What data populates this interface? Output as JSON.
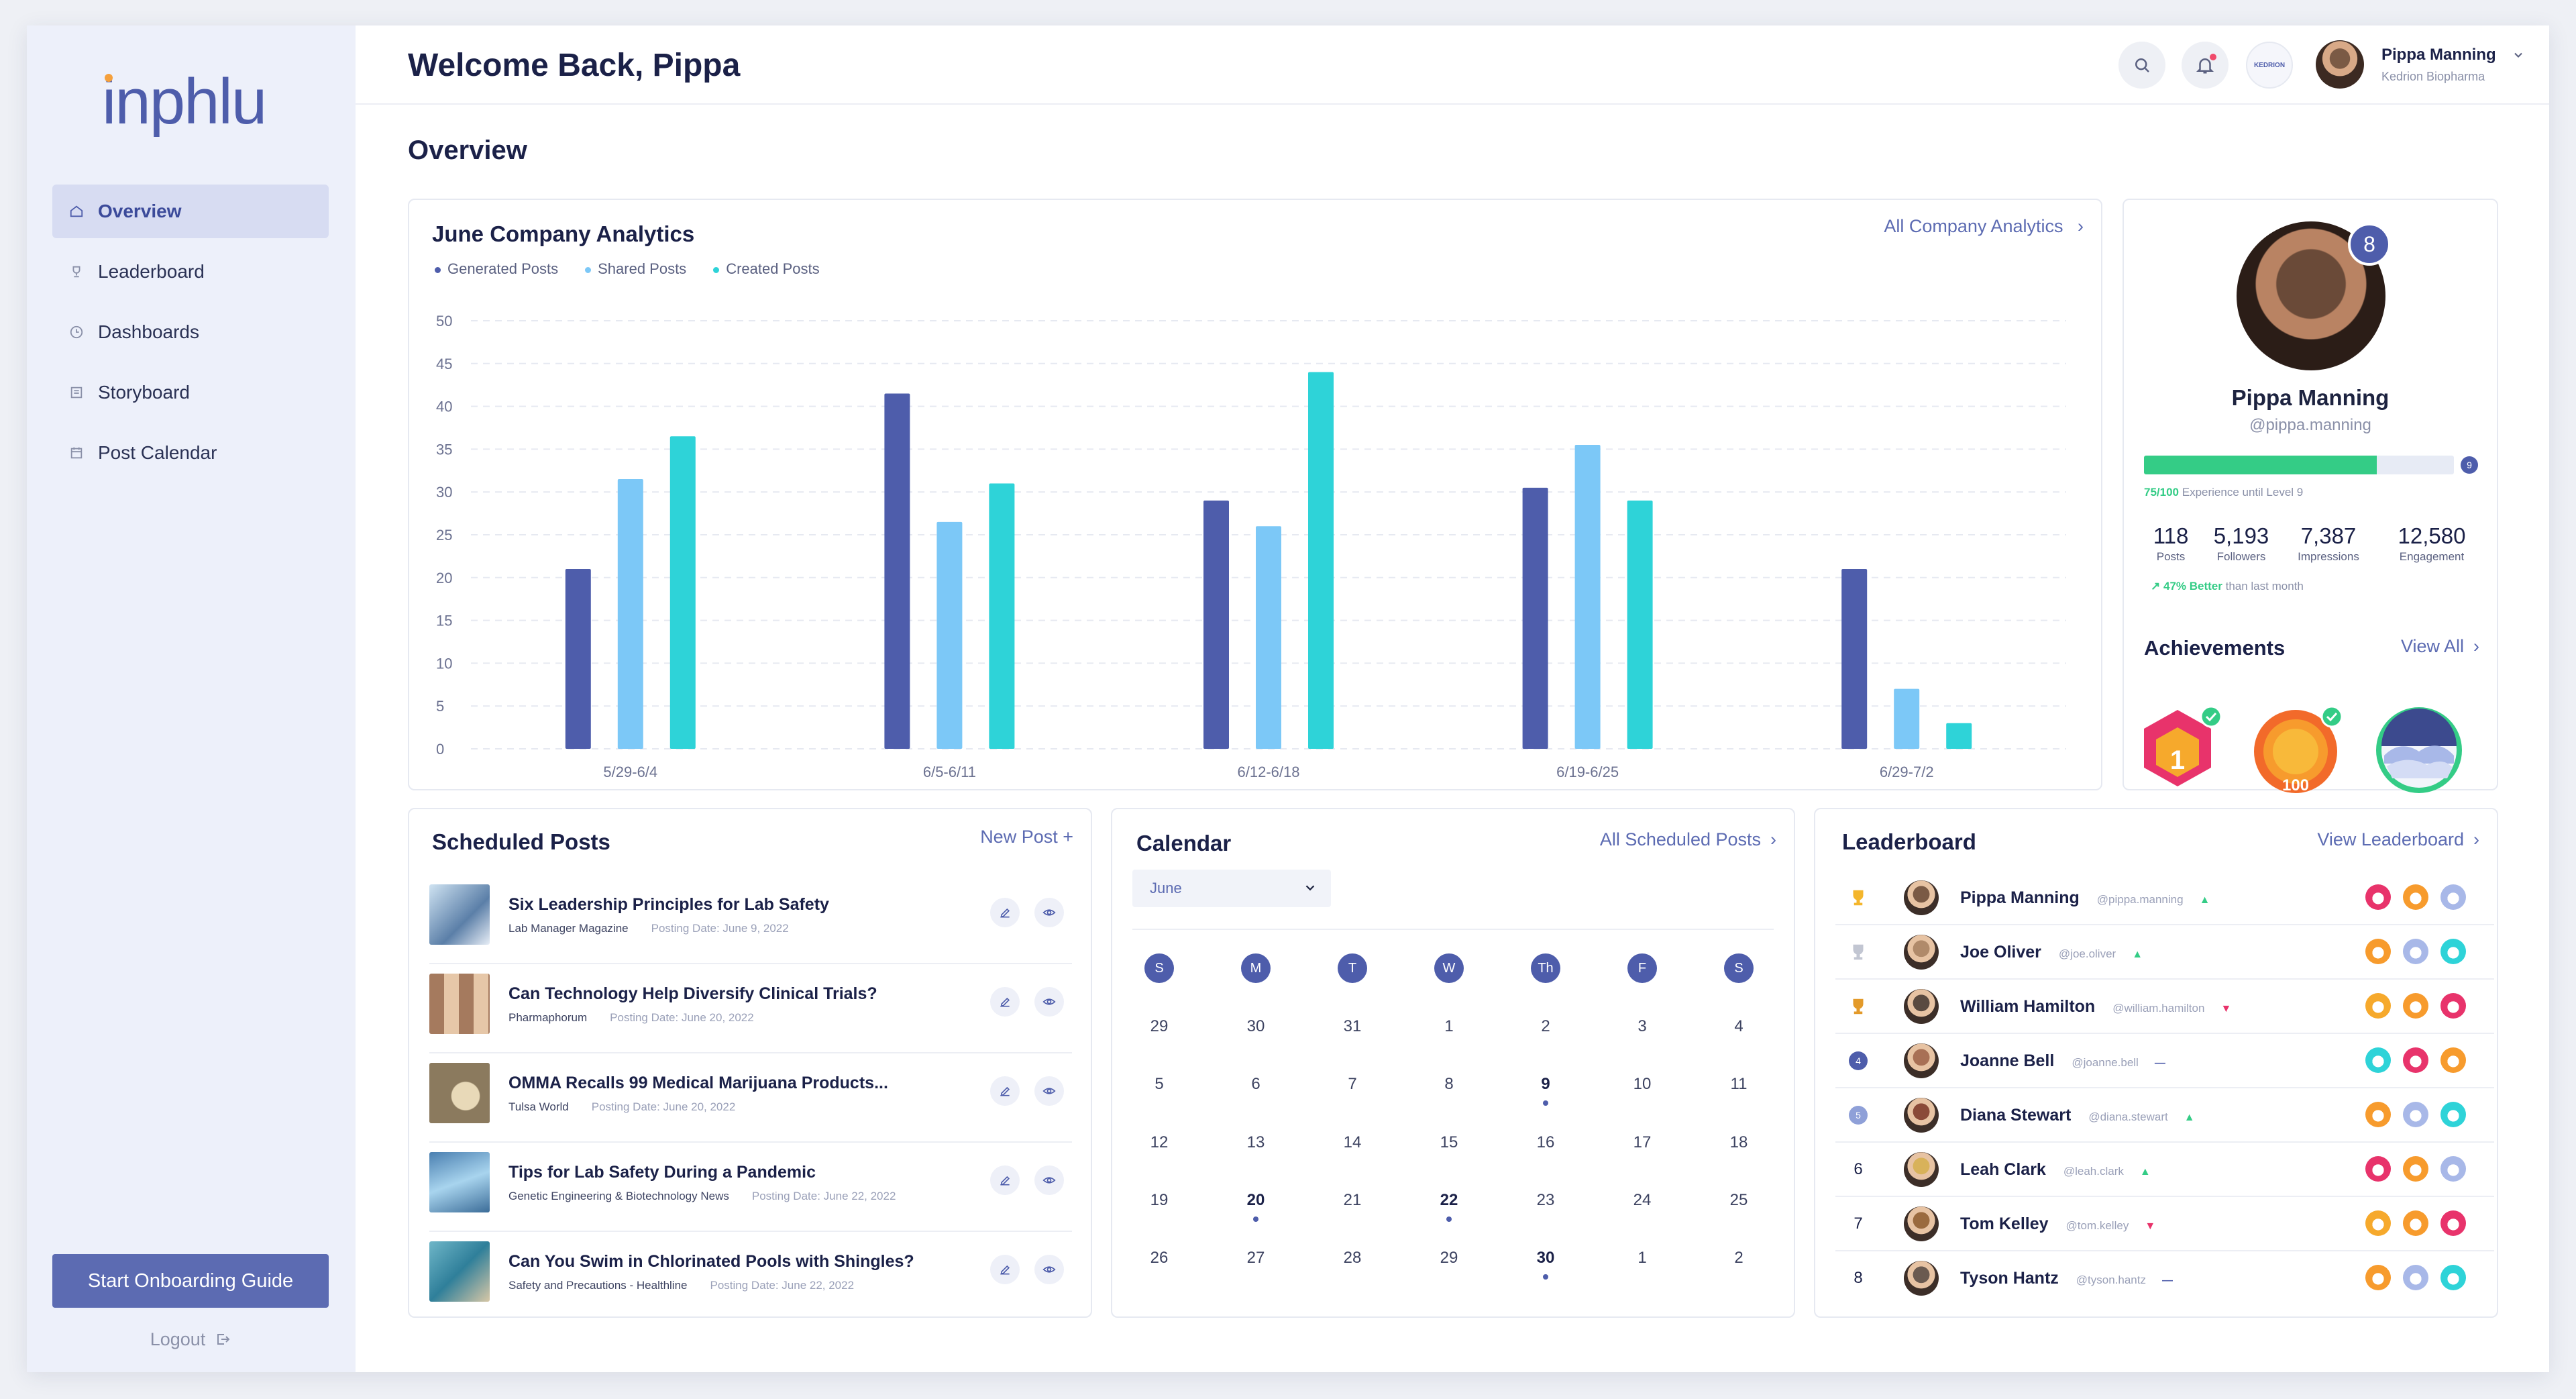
{
  "app": {
    "logo_text": "inphlu"
  },
  "sidebar": {
    "items": [
      {
        "label": "Overview",
        "icon": "home-icon",
        "active": true
      },
      {
        "label": "Leaderboard",
        "icon": "trophy-icon",
        "active": false
      },
      {
        "label": "Dashboards",
        "icon": "clock-icon",
        "active": false
      },
      {
        "label": "Storyboard",
        "icon": "storyboard-icon",
        "active": false
      },
      {
        "label": "Post Calendar",
        "icon": "calendar-icon",
        "active": false
      }
    ],
    "onboarding_label": "Start Onboarding Guide",
    "logout_label": "Logout"
  },
  "header": {
    "welcome": "Welcome Back, Pippa",
    "company_badge": "KEDRION",
    "user_name": "Pippa Manning",
    "user_company": "Kedrion Biopharma"
  },
  "page": {
    "title": "Overview"
  },
  "analytics": {
    "title": "June Company Analytics",
    "link": "All Company Analytics",
    "legend": [
      {
        "label": "Generated Posts",
        "color": "#4e5dab"
      },
      {
        "label": "Shared Posts",
        "color": "#7cc8f7"
      },
      {
        "label": "Created Posts",
        "color": "#2ed3d8"
      }
    ]
  },
  "chart_data": {
    "type": "bar",
    "categories": [
      "5/29-6/4",
      "6/5-6/11",
      "6/12-6/18",
      "6/19-6/25",
      "6/29-7/2"
    ],
    "series": [
      {
        "name": "Generated Posts",
        "color": "#4e5dab",
        "values": [
          21,
          41.5,
          29,
          30.5,
          21
        ]
      },
      {
        "name": "Shared Posts",
        "color": "#7cc8f7",
        "values": [
          31.5,
          26.5,
          26,
          35.5,
          7
        ]
      },
      {
        "name": "Created Posts",
        "color": "#2ed3d8",
        "values": [
          36.5,
          31,
          44,
          29,
          3
        ]
      }
    ],
    "ylim": [
      0,
      50
    ],
    "yticks": [
      "0",
      "5",
      "10",
      "15",
      "20",
      "25",
      "30",
      "35",
      "40",
      "45",
      "50"
    ],
    "grid": true
  },
  "profile": {
    "level": "8",
    "name": "Pippa Manning",
    "handle": "@pippa.manning",
    "xp_fraction": 0.75,
    "xp_value": "75/100",
    "xp_text": "Experience until Level 9",
    "next_level": "9",
    "stats": [
      {
        "value": "118",
        "label": "Posts"
      },
      {
        "value": "5,193",
        "label": "Followers"
      },
      {
        "value": "7,387",
        "label": "Impressions"
      },
      {
        "value": "12,580",
        "label": "Engagement"
      }
    ],
    "better_value": "47% Better",
    "better_text": "than last month",
    "achievements_title": "Achievements",
    "achievements_link": "View All",
    "achievement_badge_text": "100"
  },
  "scheduled": {
    "title": "Scheduled Posts",
    "link": "New Post +",
    "posts": [
      {
        "title": "Six Leadership Principles for Lab Safety",
        "source": "Lab Manager Magazine",
        "date": "Posting Date: June 9, 2022"
      },
      {
        "title": "Can Technology Help Diversify Clinical Trials?",
        "source": "Pharmaphorum",
        "date": "Posting Date: June 20, 2022"
      },
      {
        "title": "OMMA Recalls 99 Medical Marijuana Products...",
        "source": "Tulsa World",
        "date": "Posting Date: June 20, 2022"
      },
      {
        "title": "Tips for Lab Safety During a Pandemic",
        "source": "Genetic Engineering & Biotechnology News",
        "date": "Posting Date: June 22, 2022"
      },
      {
        "title": "Can You Swim in Chlorinated Pools with Shingles?",
        "source": "Safety and Precautions - Healthline",
        "date": "Posting Date: June 22, 2022"
      }
    ]
  },
  "calendar": {
    "title": "Calendar",
    "link": "All Scheduled Posts",
    "month": "June",
    "days_of_week": [
      "S",
      "M",
      "T",
      "W",
      "Th",
      "F",
      "S"
    ],
    "weeks": [
      [
        "29",
        "30",
        "31",
        "1",
        "2",
        "3",
        "4"
      ],
      [
        "5",
        "6",
        "7",
        "8",
        "9",
        "10",
        "11"
      ],
      [
        "12",
        "13",
        "14",
        "15",
        "16",
        "17",
        "18"
      ],
      [
        "19",
        "20",
        "21",
        "22",
        "23",
        "24",
        "25"
      ],
      [
        "26",
        "27",
        "28",
        "29",
        "30",
        "1",
        "2"
      ]
    ],
    "marked": [
      "9",
      "20",
      "22",
      "30"
    ]
  },
  "leaderboard": {
    "title": "Leaderboard",
    "link": "View Leaderboard",
    "rows": [
      {
        "rank": "1",
        "name": "Pippa Manning",
        "handle": "@pippa.manning",
        "trend": "up"
      },
      {
        "rank": "2",
        "name": "Joe Oliver",
        "handle": "@joe.oliver",
        "trend": "up"
      },
      {
        "rank": "3",
        "name": "William Hamilton",
        "handle": "@william.hamilton",
        "trend": "down"
      },
      {
        "rank": "4",
        "name": "Joanne Bell",
        "handle": "@joanne.bell",
        "trend": "same"
      },
      {
        "rank": "5",
        "name": "Diana Stewart",
        "handle": "@diana.stewart",
        "trend": "up"
      },
      {
        "rank": "6",
        "name": "Leah Clark",
        "handle": "@leah.clark",
        "trend": "up"
      },
      {
        "rank": "7",
        "name": "Tom Kelley",
        "handle": "@tom.kelley",
        "trend": "down"
      },
      {
        "rank": "8",
        "name": "Tyson Hantz",
        "handle": "@tyson.hantz",
        "trend": "same"
      }
    ]
  }
}
